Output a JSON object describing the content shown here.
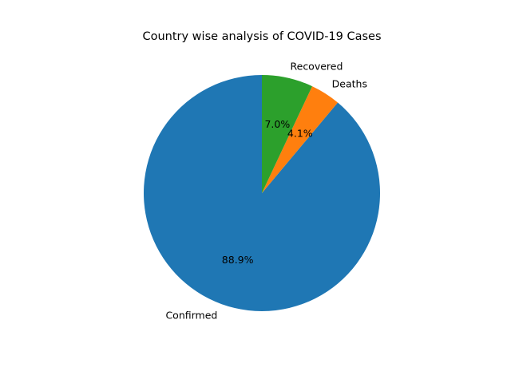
{
  "chart_data": {
    "type": "pie",
    "title": "Country wise analysis of COVID-19 Cases",
    "start_angle_deg": 90,
    "direction": "counterclockwise",
    "slices": [
      {
        "label": "Confirmed",
        "value": 88.9,
        "pct_label": "88.9%",
        "color": "#1f77b4"
      },
      {
        "label": "Deaths",
        "value": 4.1,
        "pct_label": "4.1%",
        "color": "#ff7f0e"
      },
      {
        "label": "Recovered",
        "value": 7.0,
        "pct_label": "7.0%",
        "color": "#2ca02c"
      }
    ]
  }
}
